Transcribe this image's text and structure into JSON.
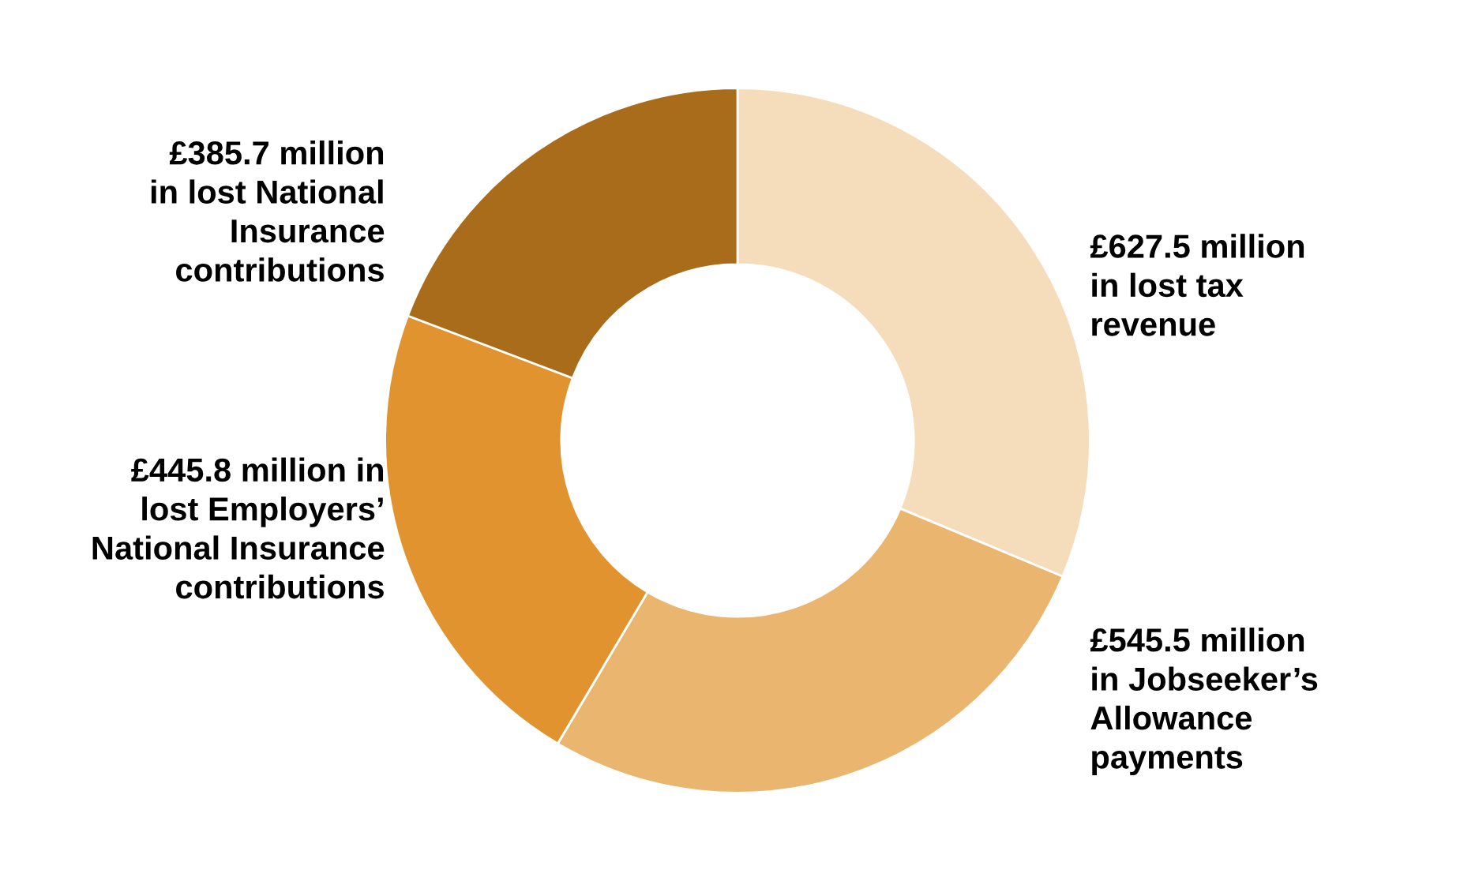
{
  "chart_data": {
    "type": "donut",
    "categories": [
      "£627.5 million\nin lost tax\nrevenue",
      "£545.5 million\nin Jobseeker’s\nAllowance\npayments",
      "£445.8 million in\nlost Employers’\nNational Insurance\ncontributions",
      "£385.7 million\nin lost National\nInsurance\ncontributions"
    ],
    "values": [
      627.5,
      545.5,
      445.8,
      385.7
    ],
    "colors": [
      "#f5dcbb",
      "#e9b56f",
      "#e0932e",
      "#a96c1b"
    ],
    "legend": false
  }
}
